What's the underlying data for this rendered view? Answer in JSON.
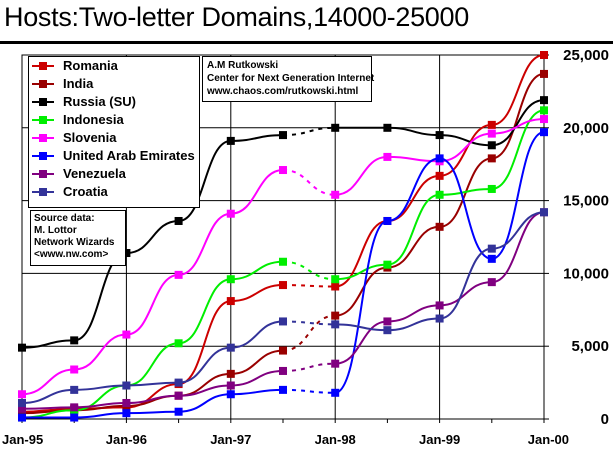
{
  "title": "Hosts:Two-letter Domains,14000-25000",
  "credit": {
    "line1": "A.M Rutkowski",
    "line2": "Center for Next Generation Internet",
    "line3": "www.chaos.com/rutkowski.html"
  },
  "source": {
    "line1": "Source data:",
    "line2": "M. Lottor",
    "line3": "Network Wizards",
    "line4": "<www.nw.com>"
  },
  "chart_data": {
    "type": "line",
    "x": [
      "Jan-95",
      "Jul-95",
      "Jan-96",
      "Jul-96",
      "Jan-97",
      "Jul-97",
      "Jan-98",
      "Jul-98",
      "Jan-99",
      "Jul-99",
      "Jan-00"
    ],
    "x_tick_labels": [
      "Jan-95",
      "Jan-96",
      "Jan-97",
      "Jan-98",
      "Jan-99",
      "Jan-00"
    ],
    "ylim": [
      0,
      25000
    ],
    "y_ticks": [
      0,
      5000,
      10000,
      15000,
      20000,
      25000
    ],
    "y_tick_labels": [
      "0",
      "5,000",
      "10,000",
      "15,000",
      "20,000",
      "25,000"
    ],
    "y_axis_side": "right",
    "grid": true,
    "legend": "top-left",
    "dashed_segments_note": "dotted between Jul-97 and Jan-98",
    "series": [
      {
        "name": "Romania",
        "color": "#cc0000",
        "values": [
          500,
          700,
          800,
          2400,
          8100,
          9200,
          9100,
          13600,
          16700,
          20200,
          25000
        ]
      },
      {
        "name": "India",
        "color": "#990000",
        "values": [
          400,
          600,
          900,
          1600,
          3100,
          4700,
          7100,
          10400,
          13200,
          17900,
          23700
        ]
      },
      {
        "name": "Russia (SU)",
        "color": "#000000",
        "values": [
          4900,
          5400,
          11400,
          13600,
          19100,
          19500,
          20000,
          20000,
          19500,
          18800,
          21900
        ]
      },
      {
        "name": "Indonesia",
        "color": "#00ee00",
        "values": [
          100,
          600,
          2300,
          5200,
          9600,
          10800,
          9600,
          10600,
          15400,
          15800,
          21200
        ]
      },
      {
        "name": "Slovenia",
        "color": "#ff00ff",
        "values": [
          1700,
          3400,
          5800,
          9900,
          14100,
          17100,
          15400,
          18000,
          17700,
          19600,
          20600
        ]
      },
      {
        "name": "United Arab Emirates",
        "color": "#0000ff",
        "values": [
          100,
          100,
          400,
          500,
          1700,
          2000,
          1800,
          13600,
          17900,
          11000,
          19700
        ]
      },
      {
        "name": "Venezuela",
        "color": "#800080",
        "values": [
          700,
          800,
          1100,
          1600,
          2300,
          3300,
          3800,
          6700,
          7800,
          9400,
          14200
        ]
      },
      {
        "name": "Croatia",
        "color": "#333399",
        "values": [
          1100,
          2000,
          2300,
          2500,
          4900,
          6700,
          6500,
          6100,
          6900,
          11700,
          14200
        ]
      }
    ]
  }
}
